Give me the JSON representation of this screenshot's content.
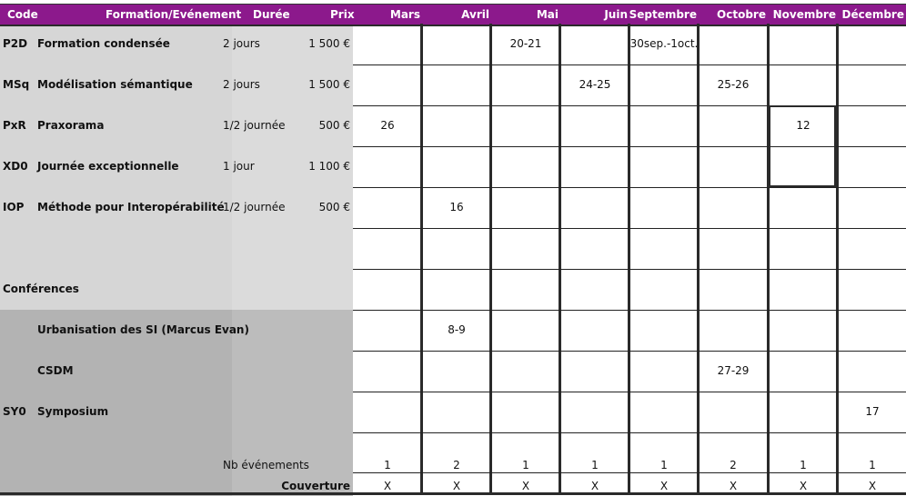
{
  "headers": {
    "code": "Code",
    "formation": "Formation/Evénement",
    "duree": "Durée",
    "prix": "Prix"
  },
  "months": [
    "Mars",
    "Avril",
    "Mai",
    "Juin",
    "Septembre",
    "Octobre",
    "Novembre",
    "Décembre"
  ],
  "rows": [
    {
      "code": "P2D",
      "name": "Formation condensée",
      "duree": "2 jours",
      "prix": "1 500 €",
      "cells": [
        "",
        "",
        "20-21",
        "",
        "30sep.-1oct.",
        "",
        "",
        ""
      ]
    },
    {
      "code": "MSq",
      "name": "Modélisation sémantique",
      "duree": "2 jours",
      "prix": "1 500 €",
      "cells": [
        "",
        "",
        "",
        "24-25",
        "",
        "25-26",
        "",
        ""
      ]
    },
    {
      "code": "PxR",
      "name": "Praxorama",
      "duree": "1/2 journée",
      "prix": "500 €",
      "cells": [
        "26",
        "",
        "",
        "",
        "",
        "",
        "12",
        ""
      ]
    },
    {
      "code": "XD0",
      "name": "Journée exceptionnelle",
      "duree": "1 jour",
      "prix": "1 100 €",
      "cells": [
        "",
        "",
        "",
        "",
        "",
        "",
        "",
        ""
      ]
    },
    {
      "code": "IOP",
      "name": "Méthode pour Interopérabilité",
      "duree": "1/2 journée",
      "prix": "500 €",
      "cells": [
        "",
        "16",
        "",
        "",
        "",
        "",
        "",
        ""
      ]
    },
    {
      "code": "",
      "name": "",
      "duree": "",
      "prix": "",
      "cells": [
        "",
        "",
        "",
        "",
        "",
        "",
        "",
        ""
      ]
    },
    {
      "code": "Conférences",
      "name": "",
      "duree": "",
      "prix": "",
      "cells": [
        "",
        "",
        "",
        "",
        "",
        "",
        "",
        ""
      ]
    },
    {
      "code": "",
      "name": "Urbanisation des SI (Marcus Evan)",
      "duree": "",
      "prix": "",
      "cells": [
        "",
        "8-9",
        "",
        "",
        "",
        "",
        "",
        ""
      ]
    },
    {
      "code": "",
      "name": "CSDM",
      "duree": "",
      "prix": "",
      "cells": [
        "",
        "",
        "",
        "",
        "",
        "27-29",
        "",
        ""
      ]
    },
    {
      "code": "SY0",
      "name": "Symposium",
      "duree": "",
      "prix": "",
      "cells": [
        "",
        "",
        "",
        "",
        "",
        "",
        "",
        "17"
      ]
    }
  ],
  "totals": {
    "nb_label": "Nb événements",
    "nb_values": [
      "1",
      "2",
      "1",
      "1",
      "1",
      "2",
      "1",
      "1"
    ],
    "couverture_label": "Couverture",
    "couverture_values": [
      "X",
      "X",
      "X",
      "X",
      "X",
      "X",
      "X",
      "X"
    ]
  },
  "colors": {
    "header": "#8c198c"
  }
}
